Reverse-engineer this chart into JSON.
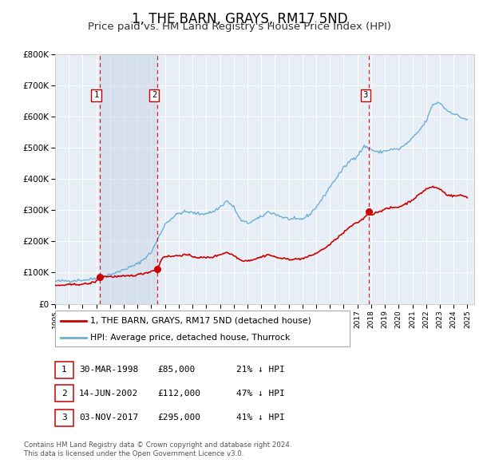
{
  "title": "1, THE BARN, GRAYS, RM17 5ND",
  "subtitle": "Price paid vs. HM Land Registry's House Price Index (HPI)",
  "title_fontsize": 12,
  "subtitle_fontsize": 9.5,
  "background_color": "#ffffff",
  "plot_bg_color": "#e8eef5",
  "grid_color": "#ffffff",
  "ylim": [
    0,
    800000
  ],
  "yticks": [
    0,
    100000,
    200000,
    300000,
    400000,
    500000,
    600000,
    700000,
    800000
  ],
  "ytick_labels": [
    "£0",
    "£100K",
    "£200K",
    "£300K",
    "£400K",
    "£500K",
    "£600K",
    "£700K",
    "£800K"
  ],
  "xlim_start": 1995.0,
  "xlim_end": 2025.5,
  "sale_color": "#cc0000",
  "hpi_color": "#6baed6",
  "shade_color": "#c8d8e8",
  "transactions": [
    {
      "num": 1,
      "date_label": "30-MAR-1998",
      "date_x": 1998.24,
      "price": 85000,
      "pct": "21%",
      "direction": "↓"
    },
    {
      "num": 2,
      "date_label": "14-JUN-2002",
      "date_x": 2002.45,
      "price": 112000,
      "pct": "47%",
      "direction": "↓"
    },
    {
      "num": 3,
      "date_label": "03-NOV-2017",
      "date_x": 2017.84,
      "price": 295000,
      "pct": "41%",
      "direction": "↓"
    }
  ],
  "legend_label_sale": "1, THE BARN, GRAYS, RM17 5ND (detached house)",
  "legend_label_hpi": "HPI: Average price, detached house, Thurrock",
  "footnote": "Contains HM Land Registry data © Crown copyright and database right 2024.\nThis data is licensed under the Open Government Licence v3.0.",
  "table_rows": [
    {
      "num": 1,
      "date": "30-MAR-1998",
      "price": "£85,000",
      "pct": "21% ↓ HPI"
    },
    {
      "num": 2,
      "date": "14-JUN-2002",
      "price": "£112,000",
      "pct": "47% ↓ HPI"
    },
    {
      "num": 3,
      "date": "03-NOV-2017",
      "price": "£295,000",
      "pct": "41% ↓ HPI"
    }
  ],
  "hpi_anchors_x": [
    1995.0,
    1996.0,
    1997.0,
    1997.5,
    1998.0,
    1998.5,
    1999.0,
    1999.5,
    2000.0,
    2000.5,
    2001.0,
    2001.5,
    2002.0,
    2002.5,
    2003.0,
    2003.5,
    2004.0,
    2004.5,
    2005.0,
    2005.5,
    2006.0,
    2006.5,
    2007.0,
    2007.5,
    2008.0,
    2008.5,
    2009.0,
    2009.5,
    2010.0,
    2010.5,
    2011.0,
    2011.5,
    2012.0,
    2012.5,
    2013.0,
    2013.5,
    2014.0,
    2014.5,
    2015.0,
    2015.5,
    2016.0,
    2016.5,
    2017.0,
    2017.5,
    2018.0,
    2018.5,
    2019.0,
    2019.5,
    2020.0,
    2020.5,
    2021.0,
    2021.5,
    2022.0,
    2022.5,
    2023.0,
    2023.5,
    2024.0,
    2024.5,
    2025.0
  ],
  "hpi_anchors_y": [
    72000,
    74000,
    76000,
    78000,
    82000,
    88000,
    94000,
    100000,
    110000,
    118000,
    128000,
    145000,
    165000,
    210000,
    255000,
    275000,
    290000,
    295000,
    292000,
    288000,
    290000,
    295000,
    310000,
    330000,
    310000,
    268000,
    258000,
    268000,
    278000,
    295000,
    288000,
    278000,
    272000,
    270000,
    272000,
    285000,
    310000,
    340000,
    375000,
    405000,
    435000,
    460000,
    475000,
    505000,
    495000,
    485000,
    490000,
    495000,
    495000,
    510000,
    530000,
    555000,
    585000,
    640000,
    645000,
    620000,
    610000,
    598000,
    590000
  ],
  "sale_anchors_x": [
    1995.0,
    1996.0,
    1997.0,
    1997.5,
    1998.0,
    1998.24,
    1998.5,
    1999.0,
    1999.5,
    2000.0,
    2000.5,
    2001.0,
    2001.5,
    2002.0,
    2002.45,
    2002.8,
    2003.0,
    2003.5,
    2004.0,
    2004.5,
    2005.0,
    2005.5,
    2006.0,
    2006.5,
    2007.0,
    2007.5,
    2008.0,
    2008.5,
    2009.0,
    2009.5,
    2010.0,
    2010.5,
    2011.0,
    2011.5,
    2012.0,
    2012.5,
    2013.0,
    2013.5,
    2014.0,
    2014.5,
    2015.0,
    2015.5,
    2016.0,
    2016.5,
    2017.0,
    2017.5,
    2017.84,
    2018.0,
    2018.5,
    2019.0,
    2019.5,
    2020.0,
    2020.5,
    2021.0,
    2021.5,
    2022.0,
    2022.5,
    2023.0,
    2023.5,
    2024.0,
    2024.5,
    2025.0
  ],
  "sale_anchors_y": [
    58000,
    61000,
    63000,
    65000,
    72000,
    85000,
    88000,
    87000,
    87000,
    88000,
    90000,
    93000,
    98000,
    104000,
    112000,
    148000,
    152000,
    152000,
    155000,
    157000,
    152000,
    148000,
    148000,
    150000,
    158000,
    165000,
    155000,
    140000,
    138000,
    143000,
    150000,
    158000,
    150000,
    145000,
    143000,
    143000,
    145000,
    152000,
    162000,
    175000,
    190000,
    210000,
    228000,
    248000,
    260000,
    275000,
    295000,
    285000,
    295000,
    303000,
    308000,
    310000,
    320000,
    333000,
    350000,
    368000,
    375000,
    368000,
    350000,
    345000,
    348000,
    342000
  ]
}
